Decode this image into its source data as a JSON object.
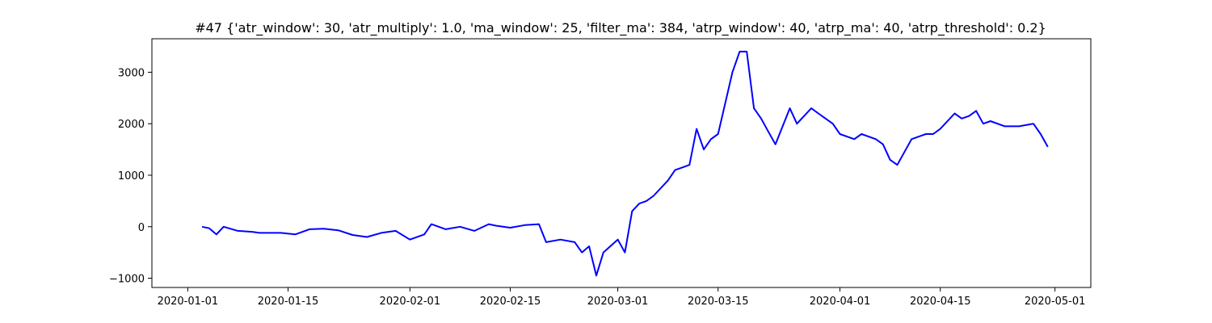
{
  "chart_data": {
    "type": "line",
    "title": "#47 {'atr_window': 30, 'atr_multiply': 1.0, 'ma_window': 25, 'filter_ma': 384, 'atrp_window': 40, 'atrp_ma': 40, 'atrp_threshold': 0.2}",
    "xlabel": "",
    "ylabel": "",
    "x_ticks": [
      "2020-01-01",
      "2020-01-15",
      "2020-02-01",
      "2020-02-15",
      "2020-03-01",
      "2020-03-15",
      "2020-04-01",
      "2020-04-15",
      "2020-05-01"
    ],
    "y_ticks": [
      -1000,
      0,
      1000,
      2000,
      3000
    ],
    "xlim": [
      "2019-12-27",
      "2020-05-06"
    ],
    "ylim": [
      -1180,
      3650
    ],
    "grid": false,
    "line_color": "#0000ff",
    "series": [
      {
        "x": [
          "2020-01-03",
          "2020-01-04",
          "2020-01-05",
          "2020-01-06",
          "2020-01-08",
          "2020-01-10",
          "2020-01-11",
          "2020-01-14",
          "2020-01-16",
          "2020-01-18",
          "2020-01-20",
          "2020-01-22",
          "2020-01-24",
          "2020-01-26",
          "2020-01-28",
          "2020-01-30",
          "2020-02-01",
          "2020-02-03",
          "2020-02-04",
          "2020-02-06",
          "2020-02-08",
          "2020-02-10",
          "2020-02-12",
          "2020-02-13",
          "2020-02-15",
          "2020-02-17",
          "2020-02-19",
          "2020-02-20",
          "2020-02-22",
          "2020-02-24",
          "2020-02-25",
          "2020-02-26",
          "2020-02-27",
          "2020-02-28",
          "2020-03-01",
          "2020-03-02",
          "2020-03-03",
          "2020-03-04",
          "2020-03-05",
          "2020-03-06",
          "2020-03-08",
          "2020-03-09",
          "2020-03-10",
          "2020-03-11",
          "2020-03-12",
          "2020-03-13",
          "2020-03-14",
          "2020-03-15",
          "2020-03-17",
          "2020-03-18",
          "2020-03-19",
          "2020-03-20",
          "2020-03-21",
          "2020-03-22",
          "2020-03-23",
          "2020-03-25",
          "2020-03-26",
          "2020-03-28",
          "2020-03-29",
          "2020-03-31",
          "2020-04-01",
          "2020-04-03",
          "2020-04-04",
          "2020-04-06",
          "2020-04-07",
          "2020-04-08",
          "2020-04-09",
          "2020-04-11",
          "2020-04-13",
          "2020-04-14",
          "2020-04-15",
          "2020-04-17",
          "2020-04-18",
          "2020-04-19",
          "2020-04-20",
          "2020-04-21",
          "2020-04-22",
          "2020-04-24",
          "2020-04-26",
          "2020-04-28",
          "2020-04-29",
          "2020-04-30"
        ],
        "y": [
          0,
          -30,
          -150,
          0,
          -80,
          -100,
          -120,
          -120,
          -150,
          -50,
          -40,
          -70,
          -160,
          -200,
          -120,
          -80,
          -250,
          -150,
          50,
          -50,
          0,
          -80,
          50,
          20,
          -20,
          30,
          50,
          -300,
          -250,
          -300,
          -500,
          -380,
          -950,
          -500,
          -250,
          -500,
          300,
          450,
          500,
          600,
          900,
          1100,
          1150,
          1200,
          1900,
          1500,
          1700,
          1800,
          3000,
          3400,
          3400,
          2300,
          2100,
          1850,
          1600,
          2300,
          2000,
          2300,
          2200,
          2000,
          1800,
          1700,
          1800,
          1700,
          1600,
          1300,
          1200,
          1700,
          1800,
          1800,
          1900,
          2200,
          2100,
          2150,
          2250,
          2000,
          2050,
          1950,
          1950,
          2000,
          1800,
          1550
        ]
      }
    ]
  }
}
